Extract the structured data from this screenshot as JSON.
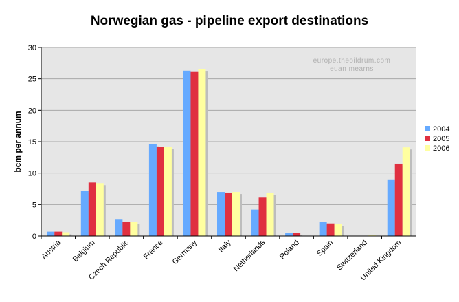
{
  "chart_data": {
    "type": "bar",
    "title": "Norwegian gas - pipeline export destinations",
    "ylabel": "bcm per annum",
    "xlabel": "",
    "ylim": [
      0,
      30
    ],
    "yticks": [
      0,
      5,
      10,
      15,
      20,
      25,
      30
    ],
    "grid": true,
    "legend_position": "right",
    "watermark": [
      "europe.theoildrum.com",
      "euan mearns"
    ],
    "categories": [
      "Austria",
      "Belgium",
      "Czech Republic",
      "France",
      "Germany",
      "Italy",
      "Netherlands",
      "Poland",
      "Spain",
      "Switzerland",
      "United Kingdom"
    ],
    "series": [
      {
        "name": "2004",
        "color": "#66aaff",
        "values": [
          0.7,
          7.2,
          2.6,
          14.6,
          26.3,
          7.0,
          4.2,
          0.5,
          2.2,
          0,
          9.0
        ]
      },
      {
        "name": "2005",
        "color": "#e03040",
        "values": [
          0.7,
          8.5,
          2.3,
          14.2,
          26.2,
          6.9,
          6.1,
          0.5,
          2.0,
          0,
          11.5
        ]
      },
      {
        "name": "2006",
        "color": "#ffffa0",
        "values": [
          0.6,
          8.4,
          2.2,
          14.2,
          26.6,
          7.0,
          6.9,
          0.0,
          1.9,
          0.1,
          14.1
        ]
      }
    ]
  }
}
